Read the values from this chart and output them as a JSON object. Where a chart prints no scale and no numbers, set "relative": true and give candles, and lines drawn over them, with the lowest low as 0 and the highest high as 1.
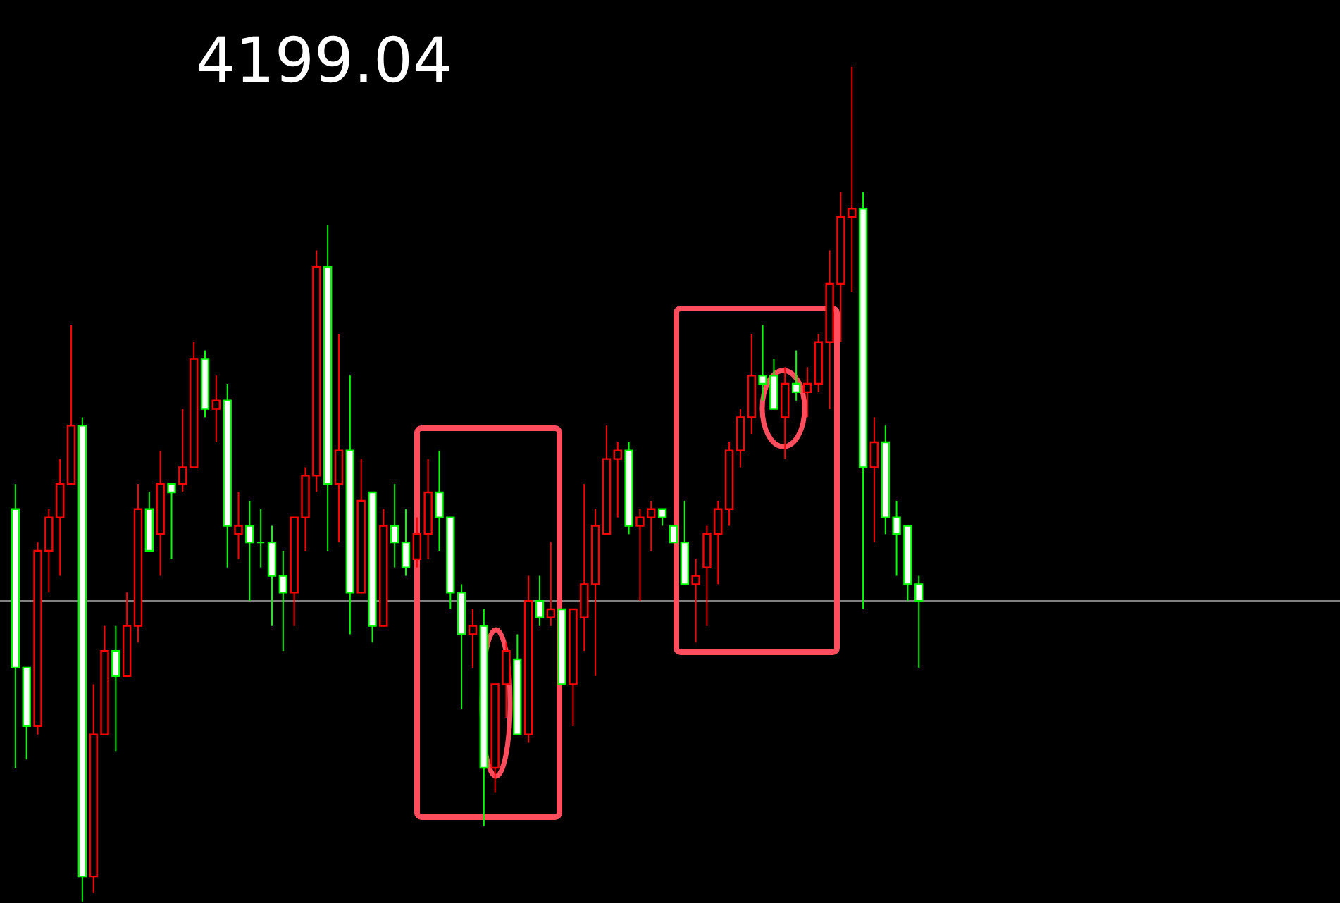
{
  "chart_data": {
    "type": "candlestick",
    "title": "4199.04",
    "relative": true,
    "categories": [
      null,
      null,
      null,
      null,
      null,
      null,
      null,
      null,
      null,
      null,
      null,
      null,
      null,
      null,
      null,
      null,
      null,
      null,
      null,
      null,
      null,
      null,
      null,
      null,
      null,
      null,
      null,
      null,
      null,
      null,
      null,
      null,
      null,
      null,
      null,
      null,
      null,
      null,
      null,
      null,
      null,
      null,
      null,
      null,
      null,
      null,
      null,
      null,
      null,
      null,
      null,
      null,
      null,
      null,
      null,
      null,
      null,
      null,
      null,
      null,
      null,
      null,
      null,
      null,
      null,
      null,
      null,
      null,
      null,
      null,
      null,
      null,
      null,
      null,
      null,
      null,
      null,
      null,
      null,
      null,
      null,
      null
    ],
    "ohlc": [
      [
        0.47,
        0.5,
        0.16,
        0.28
      ],
      [
        0.28,
        0.28,
        0.17,
        0.21
      ],
      [
        0.21,
        0.43,
        0.2,
        0.42
      ],
      [
        0.42,
        0.47,
        0.37,
        0.46
      ],
      [
        0.46,
        0.53,
        0.39,
        0.5
      ],
      [
        0.5,
        0.69,
        0.5,
        0.57
      ],
      [
        0.57,
        0.58,
        0,
        0.03
      ],
      [
        0.03,
        0.26,
        0.01,
        0.2
      ],
      [
        0.2,
        0.33,
        0.2,
        0.3
      ],
      [
        0.3,
        0.33,
        0.18,
        0.27
      ],
      [
        0.27,
        0.37,
        0.27,
        0.33
      ],
      [
        0.33,
        0.5,
        0.31,
        0.47
      ],
      [
        0.47,
        0.49,
        0.42,
        0.42
      ],
      [
        0.44,
        0.54,
        0.39,
        0.5
      ],
      [
        0.5,
        0.5,
        0.41,
        0.49
      ],
      [
        0.5,
        0.59,
        0.49,
        0.52
      ],
      [
        0.52,
        0.67,
        0.52,
        0.65
      ],
      [
        0.65,
        0.66,
        0.58,
        0.59
      ],
      [
        0.59,
        0.63,
        0.55,
        0.6
      ],
      [
        0.6,
        0.62,
        0.4,
        0.45
      ],
      [
        0.44,
        0.49,
        0.41,
        0.45
      ],
      [
        0.45,
        0.48,
        0.36,
        0.43
      ],
      [
        0.43,
        0.47,
        0.4,
        0.43
      ],
      [
        0.43,
        0.45,
        0.33,
        0.39
      ],
      [
        0.39,
        0.42,
        0.3,
        0.37
      ],
      [
        0.37,
        0.46,
        0.33,
        0.46
      ],
      [
        0.46,
        0.52,
        0.42,
        0.51
      ],
      [
        0.51,
        0.78,
        0.49,
        0.76
      ],
      [
        0.76,
        0.81,
        0.42,
        0.5
      ],
      [
        0.5,
        0.68,
        0.43,
        0.54
      ],
      [
        0.54,
        0.63,
        0.32,
        0.37
      ],
      [
        0.37,
        0.53,
        0.37,
        0.48
      ],
      [
        0.49,
        0.49,
        0.31,
        0.33
      ],
      [
        0.33,
        0.47,
        0.33,
        0.45
      ],
      [
        0.45,
        0.5,
        0.4,
        0.43
      ],
      [
        0.43,
        0.47,
        0.39,
        0.4
      ],
      [
        0.41,
        0.46,
        0.4,
        0.44
      ],
      [
        0.44,
        0.53,
        0.41,
        0.49
      ],
      [
        0.49,
        0.54,
        0.42,
        0.46
      ],
      [
        0.46,
        0.46,
        0.35,
        0.37
      ],
      [
        0.37,
        0.38,
        0.23,
        0.32
      ],
      [
        0.32,
        0.35,
        0.28,
        0.33
      ],
      [
        0.33,
        0.35,
        0.09,
        0.16
      ],
      [
        0.16,
        0.26,
        0.13,
        0.26
      ],
      [
        0.26,
        0.31,
        0.22,
        0.3
      ],
      [
        0.29,
        0.32,
        0.2,
        0.2
      ],
      [
        0.2,
        0.39,
        0.19,
        0.36
      ],
      [
        0.36,
        0.39,
        0.33,
        0.34
      ],
      [
        0.34,
        0.43,
        0.33,
        0.35
      ],
      [
        0.35,
        0.35,
        0.26,
        0.26
      ],
      [
        0.26,
        0.35,
        0.21,
        0.35
      ],
      [
        0.34,
        0.5,
        0.3,
        0.38
      ],
      [
        0.38,
        0.47,
        0.27,
        0.45
      ],
      [
        0.44,
        0.57,
        0.44,
        0.53
      ],
      [
        0.53,
        0.55,
        0.46,
        0.54
      ],
      [
        0.54,
        0.55,
        0.44,
        0.45
      ],
      [
        0.45,
        0.47,
        0.36,
        0.46
      ],
      [
        0.46,
        0.48,
        0.42,
        0.47
      ],
      [
        0.47,
        0.47,
        0.45,
        0.46
      ],
      [
        0.45,
        0.45,
        0.43,
        0.43
      ],
      [
        0.43,
        0.48,
        0.38,
        0.38
      ],
      [
        0.38,
        0.41,
        0.31,
        0.39
      ],
      [
        0.4,
        0.45,
        0.33,
        0.44
      ],
      [
        0.44,
        0.48,
        0.38,
        0.47
      ],
      [
        0.47,
        0.55,
        0.45,
        0.54
      ],
      [
        0.54,
        0.59,
        0.52,
        0.58
      ],
      [
        0.58,
        0.68,
        0.56,
        0.63
      ],
      [
        0.63,
        0.69,
        0.6,
        0.62
      ],
      [
        0.63,
        0.65,
        0.59,
        0.59
      ],
      [
        0.58,
        0.64,
        0.53,
        0.62
      ],
      [
        0.62,
        0.66,
        0.6,
        0.61
      ],
      [
        0.61,
        0.64,
        0.58,
        0.62
      ],
      [
        0.62,
        0.68,
        0.61,
        0.67
      ],
      [
        0.67,
        0.78,
        0.59,
        0.74
      ],
      [
        0.74,
        0.85,
        0.67,
        0.82
      ],
      [
        0.82,
        1,
        0.73,
        0.83
      ],
      [
        0.83,
        0.85,
        0.35,
        0.52
      ],
      [
        0.52,
        0.58,
        0.43,
        0.55
      ],
      [
        0.55,
        0.57,
        0.44,
        0.46
      ],
      [
        0.46,
        0.48,
        0.39,
        0.44
      ],
      [
        0.45,
        0.45,
        0.36,
        0.38
      ],
      [
        0.38,
        0.39,
        0.28,
        0.36
      ]
    ],
    "colors": [
      "#00ff00",
      "#00ff00",
      "#ff0000",
      "#ff0000",
      "#ff0000",
      "#ff0000",
      "#00ff00",
      "#ff0000",
      "#ff0000",
      "#00ff00",
      "#ff0000",
      "#ff0000",
      "#00ff00",
      "#ff0000",
      "#00ff00",
      "#ff0000",
      "#ff0000",
      "#00ff00",
      "#ff0000",
      "#00ff00",
      "#ff0000",
      "#00ff00",
      "#00ff00",
      "#00ff00",
      "#00ff00",
      "#ff0000",
      "#ff0000",
      "#ff0000",
      "#00ff00",
      "#ff0000",
      "#00ff00",
      "#ff0000",
      "#00ff00",
      "#ff0000",
      "#00ff00",
      "#00ff00",
      "#ff0000",
      "#ff0000",
      "#00ff00",
      "#00ff00",
      "#00ff00",
      "#ff0000",
      "#00ff00",
      "#ff0000",
      "#ff0000",
      "#00ff00",
      "#ff0000",
      "#00ff00",
      "#ff0000",
      "#00ff00",
      "#ff0000",
      "#ff0000",
      "#ff0000",
      "#ff0000",
      "#ff0000",
      "#00ff00",
      "#ff0000",
      "#ff0000",
      "#00ff00",
      "#00ff00",
      "#00ff00",
      "#ff0000",
      "#ff0000",
      "#ff0000",
      "#ff0000",
      "#ff0000",
      "#ff0000",
      "#00ff00",
      "#00ff00",
      "#ff0000",
      "#00ff00",
      "#ff0000",
      "#ff0000",
      "#ff0000",
      "#ff0000",
      "#ff0000",
      "#00ff00",
      "#ff0000",
      "#00ff00",
      "#00ff00",
      "#00ff00",
      "#00ff00"
    ],
    "ref_lines": [
      {
        "axis": "y",
        "value": 0.36,
        "color": "#808080"
      }
    ]
  }
}
